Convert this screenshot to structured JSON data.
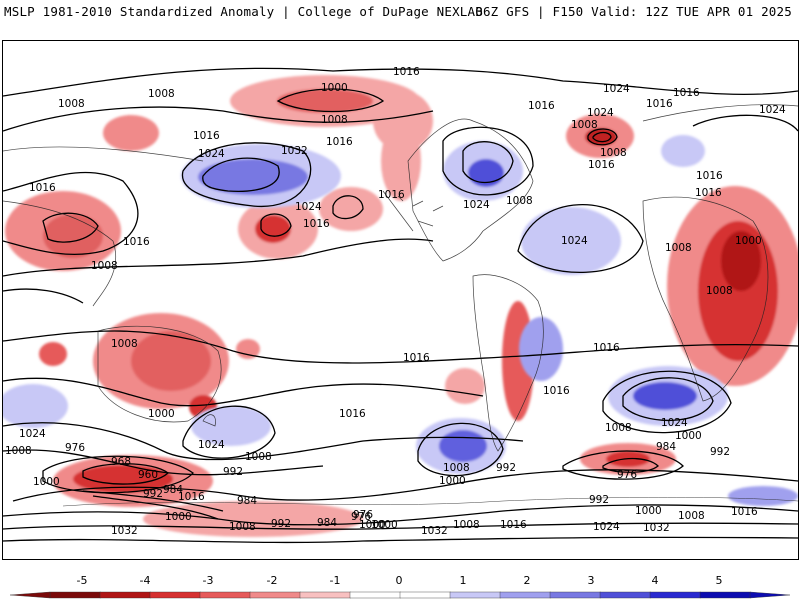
{
  "header": {
    "title_left": "MSLP 1981-2010 Standardized Anomaly | College of DuPage NEXLAB",
    "title_right": "06Z GFS | F150 Valid: 12Z TUE APR 01 2025"
  },
  "colorbar": {
    "ticks": [
      "-5",
      "-4",
      "-3",
      "-2",
      "-1",
      "0",
      "1",
      "2",
      "3",
      "4",
      "5"
    ],
    "colors": [
      "#7a0a0a",
      "#b01515",
      "#d63030",
      "#e65a5a",
      "#f08a8a",
      "#f8c0c0",
      "#ffffff",
      "#ffffff",
      "#c8c8f6",
      "#a0a0ee",
      "#7878e2",
      "#5050d8",
      "#2a2ad0",
      "#0c0cb0"
    ]
  },
  "isobar_labels": [
    "1016",
    "1008",
    "1008",
    "1000",
    "1024",
    "1016",
    "1008",
    "1016",
    "1016",
    "1032",
    "1024",
    "1016",
    "1024",
    "1016",
    "1024",
    "1016",
    "1008",
    "1016",
    "1008",
    "1024",
    "1016",
    "1008",
    "1000",
    "1000",
    "1016",
    "1016",
    "1016",
    "1008",
    "1016",
    "1024",
    "1008",
    "1024",
    "1000",
    "1008",
    "1008",
    "1000",
    "984",
    "992",
    "976",
    "968",
    "960",
    "1000",
    "992",
    "1016",
    "984",
    "992",
    "992",
    "984",
    "976",
    "1008",
    "1024",
    "1000",
    "984",
    "992",
    "1000",
    "1008",
    "1016",
    "1024",
    "1032",
    "1008",
    "992",
    "984",
    "976",
    "1000",
    "1032",
    "1024",
    "1016",
    "1008",
    "1000",
    "1016",
    "992",
    "1008",
    "1024",
    "1032",
    "1008",
    "1024",
    "1000",
    "1016",
    "976",
    "1000",
    "1008",
    "1016",
    "1016",
    "1032"
  ]
}
